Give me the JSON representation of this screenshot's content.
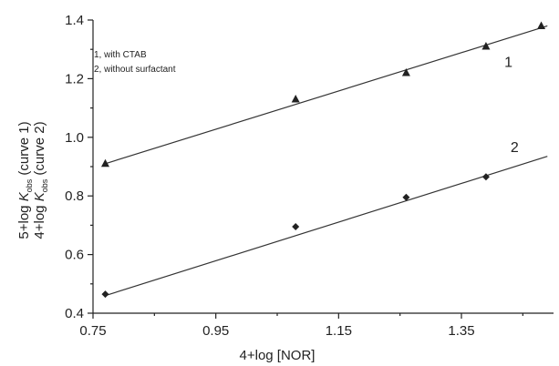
{
  "chart_data": {
    "type": "scatter",
    "xlabel": "4+log [NOR]",
    "ylabel_top": "5+log K_{obs} (curve 1)",
    "ylabel_bottom": "4+log K_{obs} (curve 2)",
    "xlim": [
      0.75,
      1.5
    ],
    "ylim": [
      0.4,
      1.4
    ],
    "xticks": [
      "0.75",
      "0.95",
      "1.15",
      "1.35"
    ],
    "xtick_values": [
      0.75,
      0.95,
      1.15,
      1.35
    ],
    "yticks": [
      "0.4",
      "0.6",
      "0.8",
      "1.0",
      "1.2",
      "1.4"
    ],
    "ytick_values": [
      0.4,
      0.6,
      0.8,
      1.0,
      1.2,
      1.4
    ],
    "legend": [
      "1, with CTAB",
      "2, without surfactant"
    ],
    "legend_position": "top-left",
    "grid": false,
    "series": [
      {
        "name": "1",
        "marker": "triangle",
        "x": [
          0.77,
          1.08,
          1.26,
          1.39,
          1.48
        ],
        "y": [
          0.91,
          1.13,
          1.22,
          1.31,
          1.38
        ],
        "fit": {
          "x": [
            0.77,
            1.49
          ],
          "y": [
            0.91,
            1.38
          ]
        },
        "label_at": {
          "x": 1.42,
          "y": 1.24
        }
      },
      {
        "name": "2",
        "marker": "diamond",
        "x": [
          0.77,
          1.08,
          1.26,
          1.39
        ],
        "y": [
          0.465,
          0.695,
          0.795,
          0.865
        ],
        "fit": {
          "x": [
            0.77,
            1.49
          ],
          "y": [
            0.46,
            0.935
          ]
        },
        "label_at": {
          "x": 1.43,
          "y": 0.95
        }
      }
    ]
  }
}
